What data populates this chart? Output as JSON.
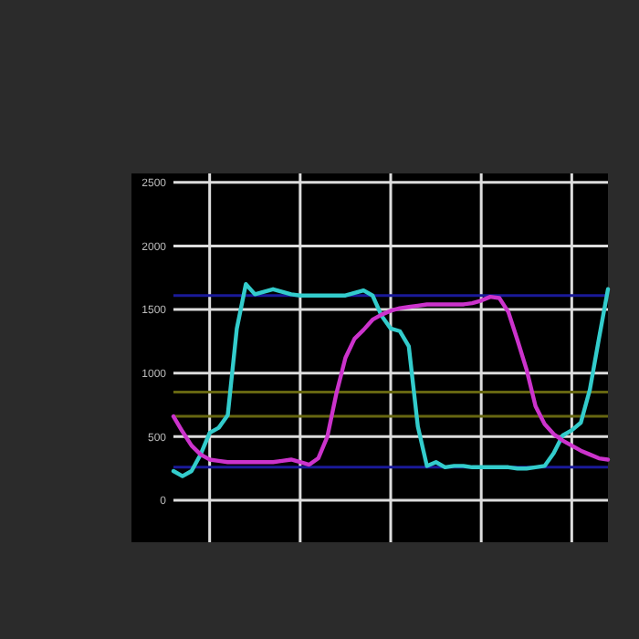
{
  "chart_data": {
    "type": "line",
    "ylim": [
      -330,
      2570
    ],
    "categories": [
      null,
      null,
      null,
      null,
      null,
      null,
      null,
      null,
      null,
      null,
      null,
      null,
      null,
      null,
      null,
      null,
      null,
      null,
      null,
      null,
      null,
      null,
      null,
      null,
      null,
      null,
      null,
      null,
      null,
      null,
      null,
      null,
      null,
      null,
      null,
      null,
      null,
      null,
      null,
      null,
      null,
      null,
      null,
      null,
      null,
      null,
      null,
      null,
      null
    ],
    "yticks": [
      0,
      500,
      1000,
      1500,
      2000,
      2500
    ],
    "grid": true,
    "tick_labels": "y",
    "marker": "none",
    "line_style": "solid",
    "series": [
      {
        "color": "#33cccc",
        "values": [
          230,
          190,
          230,
          360,
          530,
          570,
          670,
          1350,
          1700,
          1620,
          1640,
          1660,
          1640,
          1620,
          1610,
          1610,
          1610,
          1610,
          1610,
          1610,
          1630,
          1650,
          1610,
          1450,
          1350,
          1330,
          1210,
          580,
          270,
          300,
          260,
          270,
          270,
          260,
          260,
          260,
          260,
          260,
          250,
          250,
          260,
          270,
          370,
          510,
          550,
          610,
          870,
          1270,
          1660
        ]
      },
      {
        "color": "#cc33cc",
        "values": [
          660,
          540,
          430,
          360,
          320,
          310,
          300,
          300,
          300,
          300,
          300,
          300,
          310,
          320,
          300,
          280,
          330,
          500,
          840,
          1120,
          1270,
          1340,
          1420,
          1460,
          1490,
          1510,
          1520,
          1530,
          1540,
          1540,
          1540,
          1540,
          1540,
          1550,
          1570,
          1600,
          1590,
          1480,
          1260,
          1030,
          740,
          600,
          520,
          470,
          430,
          390,
          360,
          330,
          320
        ]
      }
    ],
    "ref_lines": [
      {
        "axis": "y",
        "value": 1610,
        "color": "#1a1a99"
      },
      {
        "axis": "y",
        "value": 260,
        "color": "#1a1a99"
      },
      {
        "axis": "y",
        "value": 850,
        "color": "#666611"
      },
      {
        "axis": "y",
        "value": 660,
        "color": "#666611"
      }
    ]
  }
}
